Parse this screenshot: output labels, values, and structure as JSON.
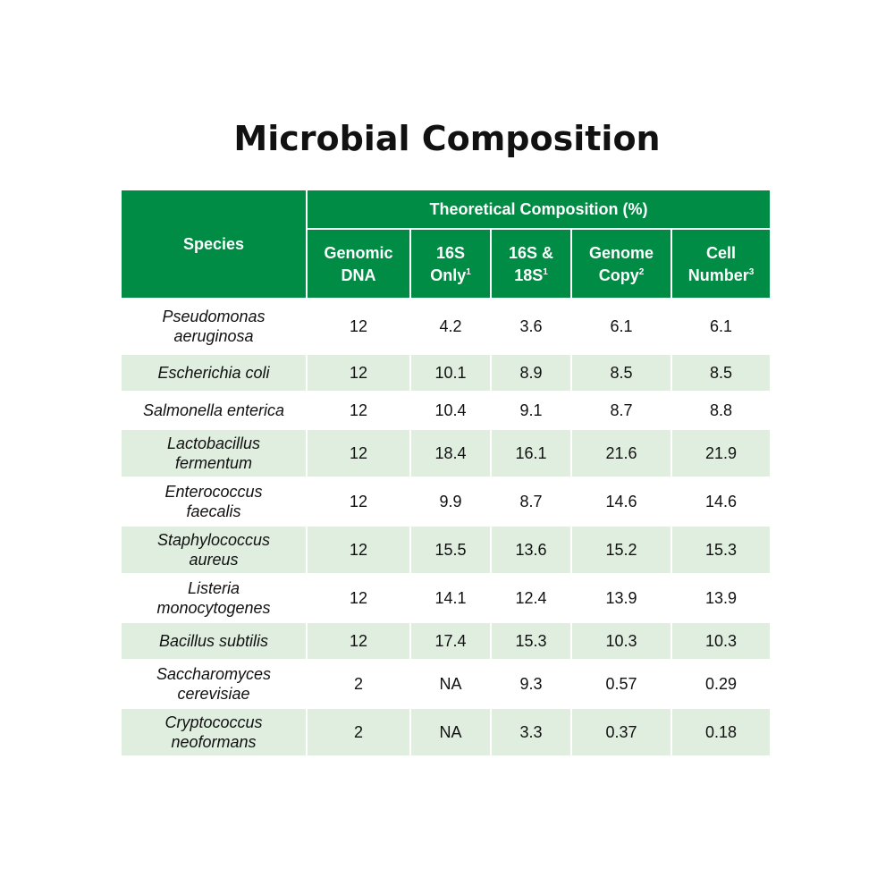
{
  "title": "Microbial Composition",
  "header": {
    "species": "Species",
    "group": "Theoretical Composition (%)",
    "columns": [
      {
        "line1": "Genomic",
        "line2": "DNA",
        "sup": ""
      },
      {
        "line1": "16S",
        "line2": "Only",
        "sup": "1"
      },
      {
        "line1": "16S &",
        "line2": "18S",
        "sup": "1"
      },
      {
        "line1": "Genome",
        "line2": "Copy",
        "sup": "2"
      },
      {
        "line1": "Cell",
        "line2": "Number",
        "sup": "3"
      }
    ]
  },
  "rows": [
    {
      "l1": "Pseudomonas",
      "l2": "aeruginosa",
      "v": [
        "12",
        "4.2",
        "3.6",
        "6.1",
        "6.1"
      ]
    },
    {
      "l1": "Escherichia coli",
      "l2": "",
      "v": [
        "12",
        "10.1",
        "8.9",
        "8.5",
        "8.5"
      ]
    },
    {
      "l1": "Salmonella enterica",
      "l2": "",
      "v": [
        "12",
        "10.4",
        "9.1",
        "8.7",
        "8.8"
      ]
    },
    {
      "l1": "Lactobacillus",
      "l2": "fermentum",
      "v": [
        "12",
        "18.4",
        "16.1",
        "21.6",
        "21.9"
      ]
    },
    {
      "l1": "Enterococcus",
      "l2": "faecalis",
      "v": [
        "12",
        "9.9",
        "8.7",
        "14.6",
        "14.6"
      ]
    },
    {
      "l1": "Staphylococcus",
      "l2": "aureus",
      "v": [
        "12",
        "15.5",
        "13.6",
        "15.2",
        "15.3"
      ]
    },
    {
      "l1": "Listeria",
      "l2": "monocytogenes",
      "v": [
        "12",
        "14.1",
        "12.4",
        "13.9",
        "13.9"
      ]
    },
    {
      "l1": "Bacillus subtilis",
      "l2": "",
      "v": [
        "12",
        "17.4",
        "15.3",
        "10.3",
        "10.3"
      ]
    },
    {
      "l1": "Saccharomyces",
      "l2": "cerevisiae",
      "v": [
        "2",
        "NA",
        "9.3",
        "0.57",
        "0.29"
      ]
    },
    {
      "l1": "Cryptococcus",
      "l2": "neoformans",
      "v": [
        "2",
        "NA",
        "3.3",
        "0.37",
        "0.18"
      ]
    }
  ]
}
